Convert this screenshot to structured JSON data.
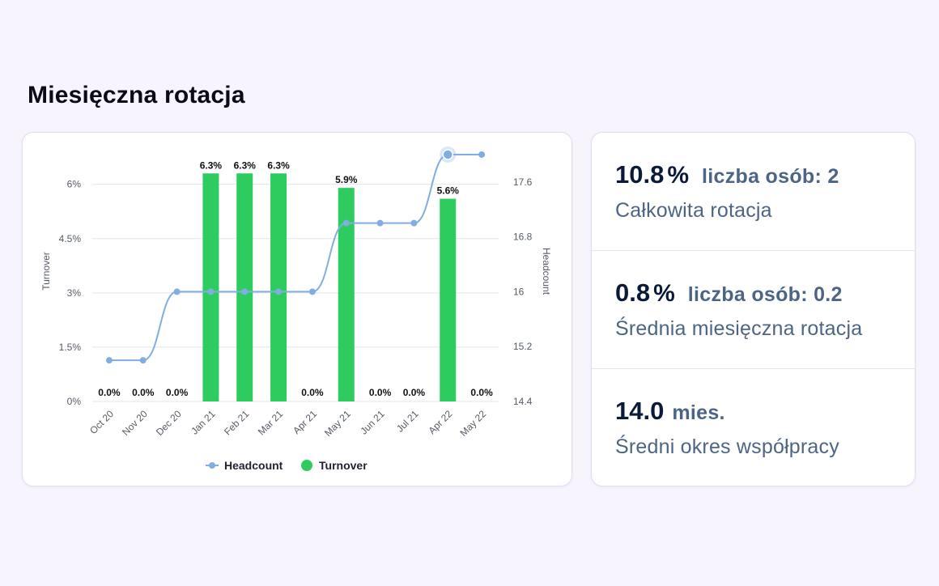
{
  "page": {
    "title": "Miesięczna rotacja"
  },
  "stats": [
    {
      "value": "10.8",
      "unit": "%",
      "note": "liczba osób: 2",
      "label": "Całkowita rotacja"
    },
    {
      "value": "0.8",
      "unit": "%",
      "note": "liczba osób: 0.2",
      "label": "Średnia miesięczna rotacja"
    },
    {
      "value": "14.0",
      "unit": "",
      "note": "mies.",
      "label": "Średni okres współpracy"
    }
  ],
  "colors": {
    "bar": "#2ecc5f",
    "line": "#80aee3",
    "grid": "#e3e4ea"
  },
  "chart_data": {
    "type": "bar",
    "categories": [
      "Oct 20",
      "Nov 20",
      "Dec 20",
      "Jan 21",
      "Feb 21",
      "Mar 21",
      "Apr 21",
      "May 21",
      "Jun 21",
      "Jul 21",
      "Apr 22",
      "May 22"
    ],
    "series": [
      {
        "name": "Turnover",
        "type": "bar",
        "axis": "left",
        "values": [
          0,
          0,
          0,
          6.3,
          6.3,
          6.3,
          0,
          5.9,
          0,
          0,
          5.6,
          0
        ],
        "data_labels": [
          "0.0%",
          "0.0%",
          "0.0%",
          "6.3%",
          "6.3%",
          "6.3%",
          "0.0%",
          "5.9%",
          "0.0%",
          "0.0%",
          "5.6%",
          "0.0%"
        ]
      },
      {
        "name": "Headcount",
        "type": "line",
        "axis": "right",
        "values": [
          15,
          15,
          16,
          16,
          16,
          16,
          16,
          17,
          17,
          17,
          18,
          18
        ]
      }
    ],
    "ylabel": "Turnover",
    "y2label": "Headcount",
    "ylim": [
      0,
      7.2
    ],
    "y2lim": [
      14.4,
      18.2
    ],
    "yticks": [
      "0%",
      "1.5%",
      "3%",
      "4.5%",
      "6%"
    ],
    "yticks_values": [
      0,
      1.5,
      3,
      4.5,
      6
    ],
    "y2ticks": [
      "14.4",
      "15.2",
      "16",
      "16.8",
      "17.6"
    ],
    "y2ticks_values": [
      14.4,
      15.2,
      16,
      16.8,
      17.6
    ],
    "grid": true,
    "legend": "bottom"
  }
}
